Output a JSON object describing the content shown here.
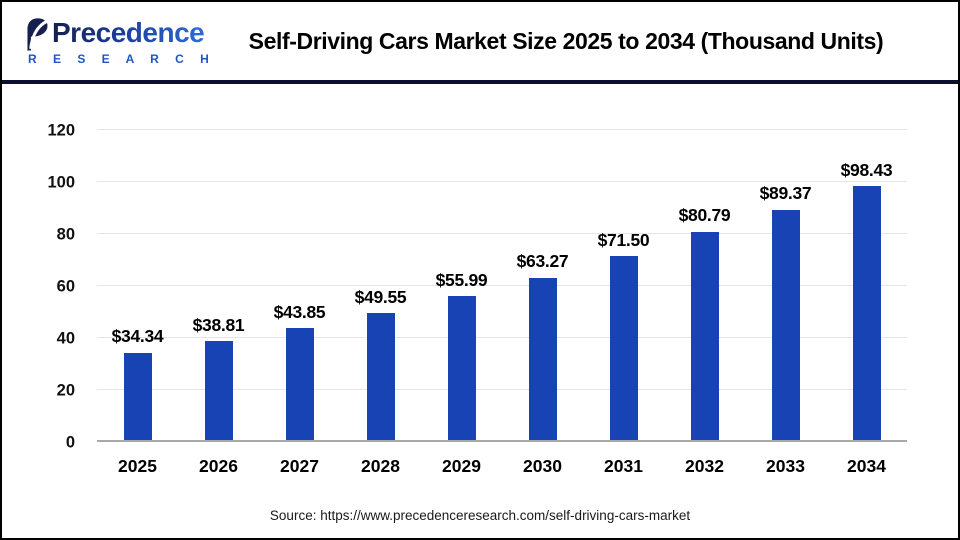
{
  "header": {
    "logo": {
      "name": "Precedence",
      "subtitle": "R E S E A R C H"
    },
    "title": "Self-Driving Cars Market Size 2025 to 2034 (Thousand Units)"
  },
  "chart_data": {
    "type": "bar",
    "title": "Self-Driving Cars Market Size 2025 to 2034 (Thousand Units)",
    "categories": [
      "2025",
      "2026",
      "2027",
      "2028",
      "2029",
      "2030",
      "2031",
      "2032",
      "2033",
      "2034"
    ],
    "values": [
      34.34,
      38.81,
      43.85,
      49.55,
      55.99,
      63.27,
      71.5,
      80.79,
      89.37,
      98.43
    ],
    "labels": [
      "$34.34",
      "$38.81",
      "$43.85",
      "$49.55",
      "$55.99",
      "$63.27",
      "$71.50",
      "$80.79",
      "$89.37",
      "$98.43"
    ],
    "xlabel": "",
    "ylabel": "",
    "ylim": [
      0,
      120
    ],
    "yticks": [
      0,
      20,
      40,
      60,
      80,
      100,
      120
    ],
    "grid": true,
    "legend": "none",
    "bar_color": "#1843B5"
  },
  "footer": {
    "source": "Source: https://www.precedenceresearch.com/self-driving-cars-market"
  },
  "colors": {
    "bar": "#1843B5",
    "header_rule": "#0A102E",
    "gridline": "#E5E5E5",
    "axis_line": "#A8A8A8",
    "logo_navy": "#15204E",
    "logo_blue": "#2E6BD9",
    "research_blue": "#2254C5",
    "text": "#000000"
  }
}
